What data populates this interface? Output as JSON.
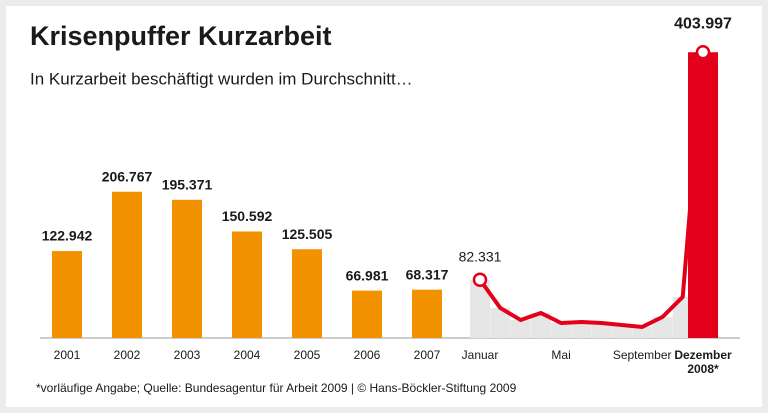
{
  "chart_data": {
    "type": "bar-line",
    "title": "Krisenpuffer Kurzarbeit",
    "subtitle": "In Kurzarbeit beschäftigt wurden im Durchschnitt…",
    "note": "*vorläufige Angabe; Quelle: Bundesagentur für Arbeit 2009 | © Hans-Böckler-Stiftung 2009",
    "categories": [
      "2001",
      "2002",
      "2003",
      "2004",
      "2005",
      "2006",
      "2007",
      "Januar",
      null,
      null,
      null,
      "Mai",
      null,
      null,
      null,
      "September",
      null,
      null,
      "Dezember 2008*"
    ],
    "ylim": [
      0,
      410000
    ],
    "series": [
      {
        "type": "bar",
        "color": "#f39200",
        "values": [
          122942,
          206767,
          195371,
          150592,
          125505,
          66981,
          68317,
          null,
          null,
          null,
          null,
          null,
          null,
          null,
          null,
          null,
          null,
          null,
          null
        ],
        "value_labels": [
          "122.942",
          "206.767",
          "195.371",
          "150.592",
          "125.505",
          "66.981",
          "68.317",
          null,
          null,
          null,
          null,
          null,
          null,
          null,
          null,
          null,
          null,
          null,
          null
        ]
      },
      {
        "type": "line",
        "color": "#e2001a",
        "bar_color": "#e6e6e6",
        "values": [
          null,
          null,
          null,
          null,
          null,
          null,
          null,
          82331,
          42500,
          25500,
          35400,
          21200,
          22700,
          21200,
          18400,
          15600,
          29700,
          58000,
          403997
        ],
        "value_labels": [
          null,
          null,
          null,
          null,
          null,
          null,
          null,
          "82.331",
          null,
          null,
          null,
          null,
          null,
          null,
          null,
          null,
          null,
          null,
          "403.997"
        ]
      }
    ]
  }
}
